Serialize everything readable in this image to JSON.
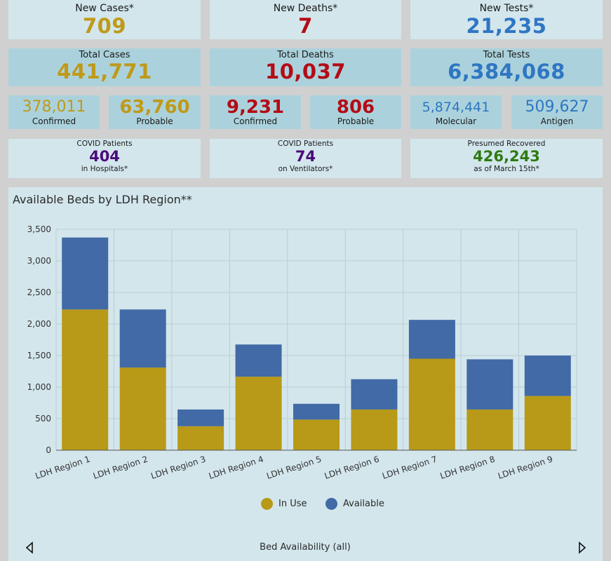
{
  "stats": {
    "new_cases": {
      "label": "New Cases*",
      "value": "709"
    },
    "new_deaths": {
      "label": "New Deaths*",
      "value": "7"
    },
    "new_tests": {
      "label": "New Tests*",
      "value": "21,235"
    },
    "total_cases": {
      "label": "Total Cases",
      "value": "441,771"
    },
    "total_deaths": {
      "label": "Total Deaths",
      "value": "10,037"
    },
    "total_tests": {
      "label": "Total Tests",
      "value": "6,384,068"
    },
    "cases_confirmed": {
      "label": "Confirmed",
      "value": "378,011"
    },
    "cases_probable": {
      "label": "Probable",
      "value": "63,760"
    },
    "deaths_confirmed": {
      "label": "Confirmed",
      "value": "9,231"
    },
    "deaths_probable": {
      "label": "Probable",
      "value": "806"
    },
    "tests_molecular": {
      "label": "Molecular",
      "value": "5,874,441"
    },
    "tests_antigen": {
      "label": "Antigen",
      "value": "509,627"
    },
    "hospitals": {
      "label_top": "COVID Patients",
      "value": "404",
      "label_bottom": "in Hospitals*"
    },
    "ventilators": {
      "label_top": "COVID Patients",
      "value": "74",
      "label_bottom": "on Ventilators*"
    },
    "recovered": {
      "label_top": "Presumed Recovered",
      "value": "426,243",
      "label_bottom": "as of March 15th*"
    }
  },
  "chart_data": {
    "type": "bar",
    "stacked": true,
    "title": "Available Beds by LDH Region**",
    "categories": [
      "LDH Region 1",
      "LDH Region 2",
      "LDH Region 3",
      "LDH Region 4",
      "LDH Region 5",
      "LDH Region 6",
      "LDH Region 7",
      "LDH Region 8",
      "LDH Region 9"
    ],
    "series": [
      {
        "name": "In Use",
        "color": "#b89a18",
        "values": [
          2230,
          1310,
          380,
          1165,
          485,
          645,
          1450,
          645,
          860
        ]
      },
      {
        "name": "Available",
        "color": "#416aa6",
        "values": [
          1140,
          920,
          265,
          510,
          250,
          480,
          615,
          795,
          640
        ]
      }
    ],
    "ylim": [
      0,
      3500
    ],
    "yticks": [
      0,
      500,
      1000,
      1500,
      2000,
      2500,
      3000,
      3500
    ],
    "ytick_labels": [
      "0",
      "500",
      "1,000",
      "1,500",
      "2,000",
      "2,500",
      "3,000",
      "3,500"
    ],
    "grid": true,
    "legend": "bottom-center"
  },
  "nav": {
    "label": "Bed Availability (all)"
  }
}
